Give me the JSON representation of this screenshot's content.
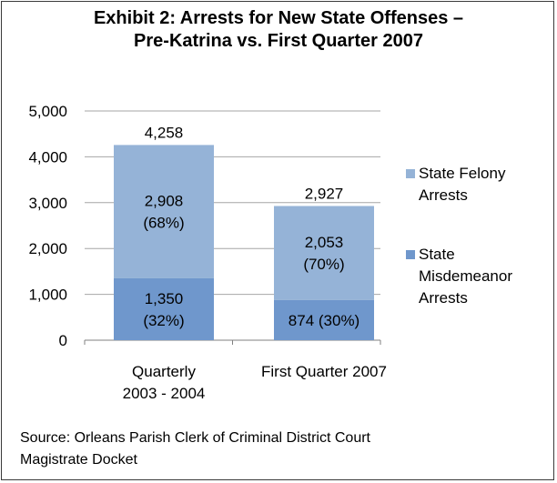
{
  "title_lines": [
    "Exhibit 2: Arrests for New State Offenses –",
    "Pre-Katrina vs. First Quarter 2007"
  ],
  "source_lines": [
    "Source: Orleans Parish Clerk of Criminal District Court",
    "Magistrate Docket"
  ],
  "legend": [
    {
      "lines": [
        "State Felony",
        "Arrests"
      ],
      "color": "#95b3d7"
    },
    {
      "lines": [
        "State",
        "Misdemeanor",
        "Arrests"
      ],
      "color": "#6f97cc"
    }
  ],
  "chart_data": {
    "type": "bar",
    "stacked": true,
    "categories": [
      {
        "lines": [
          "Quarterly",
          "2003 - 2004"
        ]
      },
      {
        "lines": [
          "First Quarter 2007"
        ]
      }
    ],
    "series": [
      {
        "name": "State Misdemeanor Arrests",
        "values": [
          1350,
          874
        ],
        "labels": [
          [
            "1,350",
            "(32%)"
          ],
          [
            "874 (30%)"
          ]
        ],
        "color": "#6f97cc"
      },
      {
        "name": "State Felony Arrests",
        "values": [
          2908,
          2053
        ],
        "labels": [
          [
            "2,908",
            "(68%)"
          ],
          [
            "2,053",
            "(70%)"
          ]
        ],
        "color": "#95b3d7"
      }
    ],
    "totals": [
      "4,258",
      "2,927"
    ],
    "ylim": [
      0,
      5000
    ],
    "yticks": [
      "0",
      "1,000",
      "2,000",
      "3,000",
      "4,000",
      "5,000"
    ],
    "grid": true
  }
}
